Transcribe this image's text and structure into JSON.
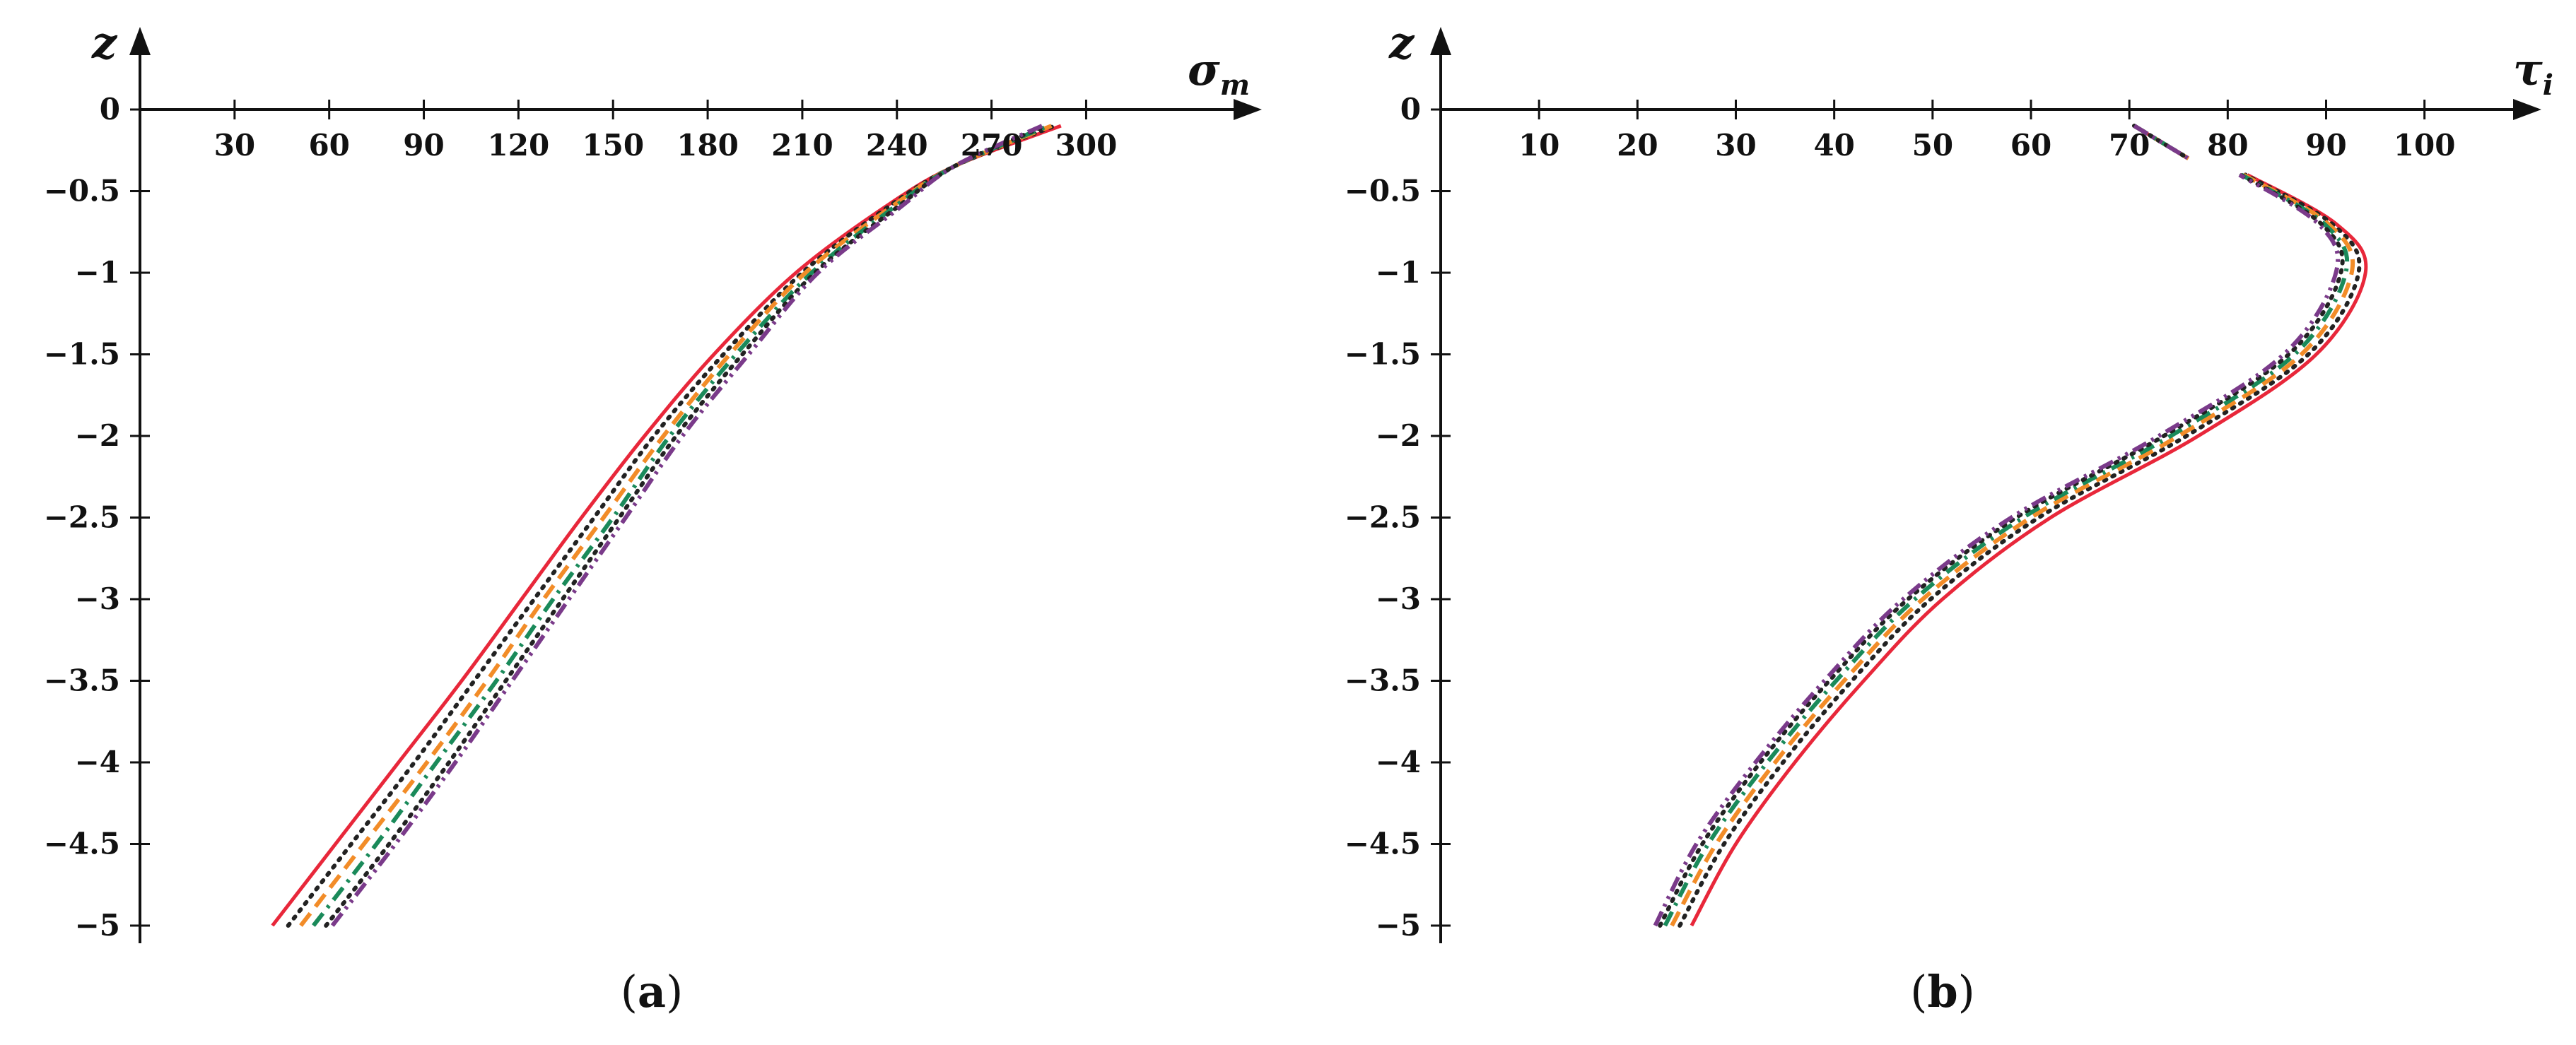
{
  "chart_data": [
    {
      "type": "line",
      "panel_label": {
        "open": "(",
        "letter": "a",
        "close": ")"
      },
      "x_axis": {
        "name": "σ",
        "subscript": "m",
        "ticks": [
          30,
          60,
          90,
          120,
          150,
          180,
          210,
          240,
          270,
          300
        ],
        "range": [
          0,
          325
        ]
      },
      "y_axis": {
        "name": "z",
        "ticks": [
          0,
          -0.5,
          -1,
          -1.5,
          -2,
          -2.5,
          -3,
          -3.5,
          -4,
          -4.5,
          -5
        ],
        "tick_labels": [
          "0",
          "−0.5",
          "−1",
          "−1.5",
          "−2",
          "−2.5",
          "−3",
          "−3.5",
          "−4",
          "−4.5",
          "−5"
        ],
        "range": [
          -5.05,
          0.2
        ]
      },
      "grid": false,
      "legend": "none",
      "series": [
        {
          "color": "#e8273a",
          "style": "solid",
          "points": [
            [
              42,
              -5
            ],
            [
              62,
              -4.5
            ],
            [
              82,
              -4
            ],
            [
              102,
              -3.5
            ],
            [
              121,
              -3
            ],
            [
              140,
              -2.5
            ],
            [
              160,
              -2
            ],
            [
              182,
              -1.5
            ],
            [
              208,
              -1
            ],
            [
              236,
              -0.6
            ],
            [
              258,
              -0.35
            ],
            [
              292,
              -0.1
            ]
          ]
        },
        {
          "color": "#222222",
          "style": "dotted",
          "points": [
            [
              47,
              -5
            ],
            [
              67,
              -4.5
            ],
            [
              87,
              -4
            ],
            [
              106,
              -3.5
            ],
            [
              125,
              -3
            ],
            [
              144,
              -2.5
            ],
            [
              163,
              -2
            ],
            [
              185,
              -1.5
            ],
            [
              210,
              -1
            ],
            [
              237,
              -0.6
            ],
            [
              258,
              -0.35
            ],
            [
              290,
              -0.1
            ]
          ]
        },
        {
          "color": "#f28c28",
          "style": "dashed",
          "points": [
            [
              51,
              -5
            ],
            [
              71,
              -4.5
            ],
            [
              91,
              -4
            ],
            [
              110,
              -3.5
            ],
            [
              128,
              -3
            ],
            [
              147,
              -2.5
            ],
            [
              166,
              -2
            ],
            [
              187,
              -1.5
            ],
            [
              211,
              -1
            ],
            [
              238,
              -0.6
            ],
            [
              258,
              -0.35
            ],
            [
              289,
              -0.1
            ]
          ]
        },
        {
          "color": "#1a8a5a",
          "style": "dashdot",
          "points": [
            [
              55,
              -5
            ],
            [
              75,
              -4.5
            ],
            [
              94,
              -4
            ],
            [
              113,
              -3.5
            ],
            [
              131,
              -3
            ],
            [
              150,
              -2.5
            ],
            [
              168,
              -2
            ],
            [
              189,
              -1.5
            ],
            [
              213,
              -1
            ],
            [
              239,
              -0.6
            ],
            [
              258,
              -0.35
            ],
            [
              288,
              -0.1
            ]
          ]
        },
        {
          "color": "#222222",
          "style": "dotted",
          "points": [
            [
              59,
              -5
            ],
            [
              79,
              -4.5
            ],
            [
              98,
              -4
            ],
            [
              116,
              -3.5
            ],
            [
              134,
              -3
            ],
            [
              152,
              -2.5
            ],
            [
              170,
              -2
            ],
            [
              191,
              -1.5
            ],
            [
              214,
              -1
            ],
            [
              240,
              -0.6
            ],
            [
              258,
              -0.35
            ],
            [
              287,
              -0.1
            ]
          ]
        },
        {
          "color": "#7a3a8a",
          "style": "dashdotdot",
          "points": [
            [
              61,
              -5
            ],
            [
              81,
              -4.5
            ],
            [
              100,
              -4
            ],
            [
              118,
              -3.5
            ],
            [
              136,
              -3
            ],
            [
              154,
              -2.5
            ],
            [
              172,
              -2
            ],
            [
              193,
              -1.5
            ],
            [
              215,
              -1
            ],
            [
              241,
              -0.6
            ],
            [
              258,
              -0.35
            ],
            [
              286,
              -0.1
            ]
          ]
        }
      ]
    },
    {
      "type": "line",
      "panel_label": {
        "open": "(",
        "letter": "b",
        "close": ")"
      },
      "x_axis": {
        "name": "τ",
        "subscript": "i",
        "ticks": [
          10,
          20,
          30,
          40,
          50,
          60,
          70,
          80,
          90,
          100
        ],
        "range": [
          0,
          108
        ]
      },
      "y_axis": {
        "name": "z",
        "ticks": [
          0,
          -0.5,
          -1,
          -1.5,
          -2,
          -2.5,
          -3,
          -3.5,
          -4,
          -4.5,
          -5
        ],
        "tick_labels": [
          "0",
          "−0.5",
          "−1",
          "−1.5",
          "−2",
          "−2.5",
          "−3",
          "−3.5",
          "−4",
          "−4.5",
          "−5"
        ],
        "range": [
          -5.05,
          0.2
        ]
      },
      "grid": false,
      "legend": "none",
      "series": [
        {
          "color": "#e8273a",
          "style": "solid",
          "points": [
            [
              25.5,
              -5
            ],
            [
              30,
              -4.5
            ],
            [
              36,
              -4
            ],
            [
              43,
              -3.5
            ],
            [
              51,
              -3
            ],
            [
              62,
              -2.5
            ],
            [
              77,
              -2
            ],
            [
              89,
              -1.5
            ],
            [
              94,
              -1
            ],
            [
              91,
              -0.7
            ],
            [
              82,
              -0.4
            ]
          ],
          "upper": [
            [
              70.5,
              -0.1
            ],
            [
              76,
              -0.3
            ]
          ]
        },
        {
          "color": "#222222",
          "style": "dotted",
          "points": [
            [
              24.3,
              -5
            ],
            [
              28.8,
              -4.5
            ],
            [
              34.8,
              -4
            ],
            [
              41.8,
              -3.5
            ],
            [
              49.8,
              -3
            ],
            [
              60.8,
              -2.5
            ],
            [
              75.8,
              -2
            ],
            [
              88.2,
              -1.5
            ],
            [
              93.3,
              -1
            ],
            [
              90.6,
              -0.7
            ],
            [
              81.8,
              -0.4
            ]
          ],
          "upper": [
            [
              70.5,
              -0.1
            ],
            [
              76,
              -0.3
            ]
          ]
        },
        {
          "color": "#f28c28",
          "style": "dashed",
          "points": [
            [
              23.5,
              -5
            ],
            [
              28,
              -4.5
            ],
            [
              34,
              -4
            ],
            [
              41,
              -3.5
            ],
            [
              49,
              -3
            ],
            [
              60,
              -2.5
            ],
            [
              75,
              -2
            ],
            [
              87.5,
              -1.5
            ],
            [
              92.6,
              -1
            ],
            [
              90.2,
              -0.7
            ],
            [
              81.6,
              -0.4
            ]
          ],
          "upper": [
            [
              70.5,
              -0.1
            ],
            [
              76,
              -0.3
            ]
          ]
        },
        {
          "color": "#1a8a5a",
          "style": "dashdot",
          "points": [
            [
              22.8,
              -5
            ],
            [
              27.2,
              -4.5
            ],
            [
              33.2,
              -4
            ],
            [
              40.2,
              -3.5
            ],
            [
              48.2,
              -3
            ],
            [
              59.2,
              -2.5
            ],
            [
              74.2,
              -2
            ],
            [
              86.8,
              -1.5
            ],
            [
              92,
              -1
            ],
            [
              89.8,
              -0.7
            ],
            [
              81.4,
              -0.4
            ]
          ],
          "upper": [
            [
              70.5,
              -0.1
            ],
            [
              76,
              -0.3
            ]
          ]
        },
        {
          "color": "#222222",
          "style": "dotted",
          "points": [
            [
              22.3,
              -5
            ],
            [
              26.6,
              -4.5
            ],
            [
              32.5,
              -4
            ],
            [
              39.5,
              -3.5
            ],
            [
              47.5,
              -3
            ],
            [
              58.5,
              -2.5
            ],
            [
              73.5,
              -2
            ],
            [
              86.2,
              -1.5
            ],
            [
              91.5,
              -1
            ],
            [
              89.5,
              -0.7
            ],
            [
              81.3,
              -0.4
            ]
          ],
          "upper": [
            [
              70.5,
              -0.1
            ],
            [
              76,
              -0.3
            ]
          ]
        },
        {
          "color": "#7a3a8a",
          "style": "dashdotdot",
          "points": [
            [
              21.8,
              -5
            ],
            [
              26,
              -4.5
            ],
            [
              32,
              -4
            ],
            [
              39,
              -3.5
            ],
            [
              47,
              -3
            ],
            [
              58,
              -2.5
            ],
            [
              73,
              -2
            ],
            [
              85.7,
              -1.5
            ],
            [
              91,
              -1
            ],
            [
              89.2,
              -0.7
            ],
            [
              81.2,
              -0.4
            ]
          ],
          "upper": [
            [
              70.5,
              -0.1
            ],
            [
              76,
              -0.3
            ]
          ]
        }
      ]
    }
  ]
}
